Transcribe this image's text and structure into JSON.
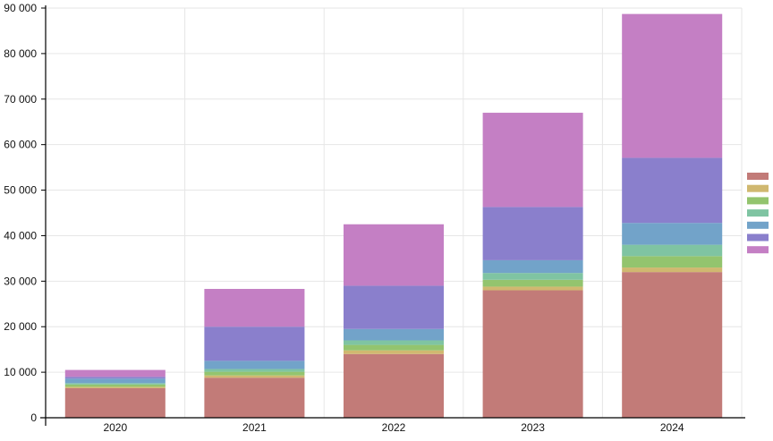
{
  "chart_data": {
    "type": "bar",
    "stacked": true,
    "categories": [
      "2020",
      "2021",
      "2022",
      "2023",
      "2024"
    ],
    "ylim": [
      0,
      90000
    ],
    "yticks": [
      0,
      10000,
      20000,
      30000,
      40000,
      50000,
      60000,
      70000,
      80000,
      90000
    ],
    "ytick_labels": [
      "0",
      "10 000",
      "20 000",
      "30 000",
      "40 000",
      "50 000",
      "60 000",
      "70 000",
      "80 000",
      "90 000"
    ],
    "grid": true,
    "legend_position": "right",
    "series": [
      {
        "color": "#c27b78",
        "values": [
          6500,
          8800,
          14000,
          28000,
          32000
        ]
      },
      {
        "color": "#d0b870",
        "values": [
          300,
          500,
          800,
          800,
          1000
        ]
      },
      {
        "color": "#93c46e",
        "values": [
          500,
          800,
          1200,
          1500,
          2500
        ]
      },
      {
        "color": "#7fc4a2",
        "values": [
          300,
          600,
          1000,
          1500,
          2500
        ]
      },
      {
        "color": "#72a3c9",
        "values": [
          1000,
          1800,
          2500,
          2800,
          4800
        ]
      },
      {
        "color": "#8a7fcc",
        "values": [
          400,
          7500,
          9500,
          11700,
          14300
        ]
      },
      {
        "color": "#c47fc4",
        "values": [
          1500,
          8300,
          13500,
          20700,
          31600
        ]
      }
    ]
  }
}
